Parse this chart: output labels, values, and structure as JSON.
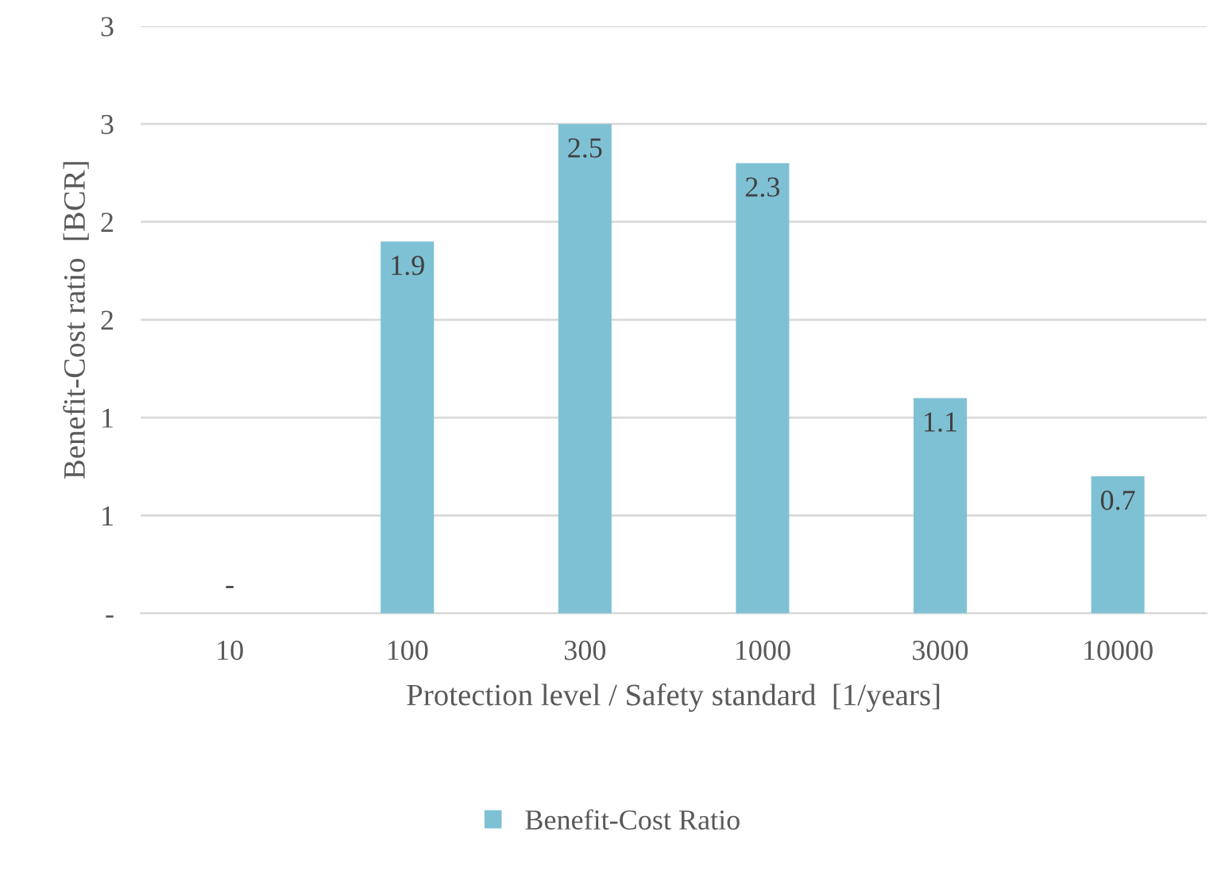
{
  "chart_data": {
    "type": "bar",
    "xlabel": "Protection level / Safety standard  [1/years]",
    "ylabel": "Benefit-Cost ratio  [BCR]",
    "categories": [
      "10",
      "100",
      "300",
      "1000",
      "3000",
      "10000"
    ],
    "series": [
      {
        "name": "Benefit-Cost Ratio",
        "color": "#7fc1d4",
        "values": [
          0,
          1.9,
          2.5,
          2.3,
          1.1,
          0.7
        ],
        "value_labels": [
          "-",
          "1.9",
          "2.5",
          "2.3",
          "1.1",
          "0.7"
        ]
      }
    ],
    "ylim": [
      0,
      3
    ],
    "yticks": [
      {
        "value": 0,
        "label": "-"
      },
      {
        "value": 0.5,
        "label": "1"
      },
      {
        "value": 1,
        "label": "1"
      },
      {
        "value": 1.5,
        "label": "2"
      },
      {
        "value": 2,
        "label": "2"
      },
      {
        "value": 2.5,
        "label": "3"
      },
      {
        "value": 3,
        "label": "3"
      }
    ],
    "grid": "y",
    "legend": "bottom"
  }
}
